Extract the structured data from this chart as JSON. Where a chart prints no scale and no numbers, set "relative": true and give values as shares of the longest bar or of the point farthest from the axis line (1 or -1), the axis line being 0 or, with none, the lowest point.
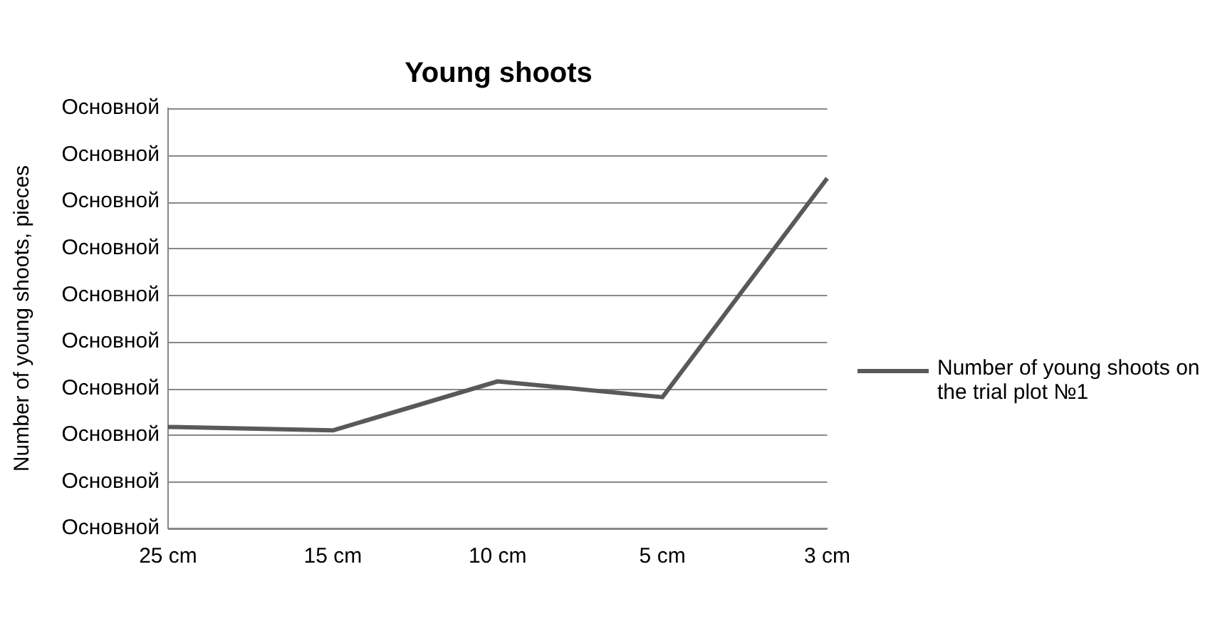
{
  "chart_data": {
    "type": "line",
    "title": "Young shoots",
    "ylabel": "Number of young shoots, pieces",
    "categories": [
      "25 cm",
      "15 cm",
      "10 cm",
      "5 cm",
      "3 cm"
    ],
    "relative": true,
    "annotations": [
      "Основной",
      "Основной",
      "Основной",
      "Основной",
      "Основной",
      "Основной",
      "Основной",
      "Основной",
      "Основной",
      "Основной"
    ],
    "series": [
      {
        "name": "Number of young shoots on the trial plot №1",
        "color": "#595959",
        "values": [
          0.29,
          0.28,
          0.42,
          0.375,
          1
        ]
      }
    ],
    "grid": "y",
    "legend": "right",
    "marker": "none",
    "line_style": "solid"
  }
}
